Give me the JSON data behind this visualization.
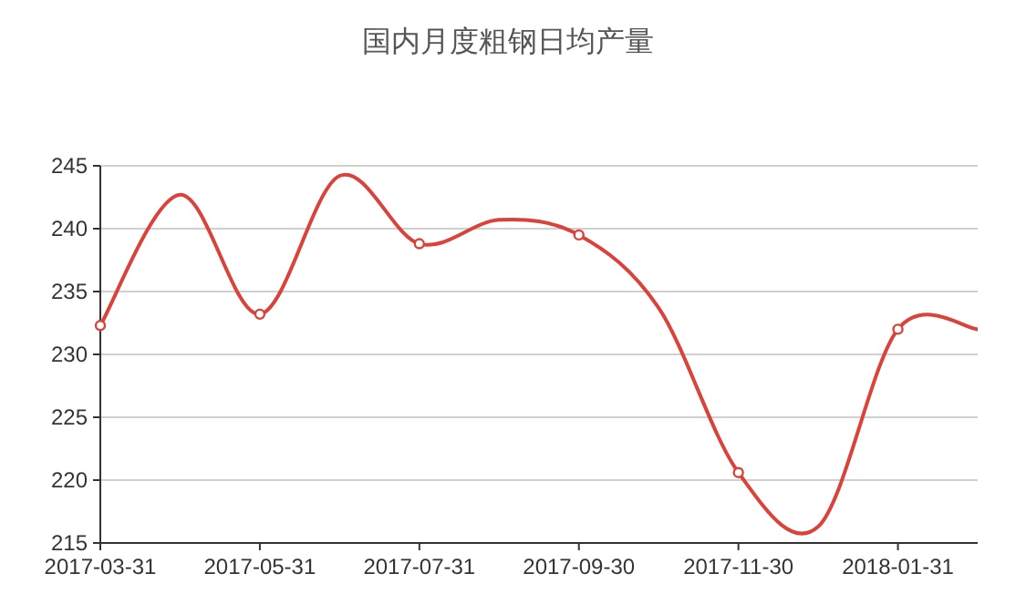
{
  "chart_data": {
    "type": "line",
    "title": "国内月度粗钢日均产量",
    "categories": [
      "2017-03-31",
      null,
      "2017-05-31",
      null,
      "2017-07-31",
      null,
      "2017-09-30",
      null,
      "2017-11-30",
      null,
      "2018-01-31",
      null
    ],
    "series": [
      {
        "color": "#d9433b",
        "values": [
          232.3,
          242.7,
          233.2,
          244.2,
          238.8,
          240.7,
          239.5,
          233.7,
          220.6,
          216.3,
          232.0,
          232.0
        ]
      }
    ],
    "ylim": [
      215,
      245
    ],
    "yticks": [
      215,
      220,
      225,
      230,
      235,
      240,
      245
    ],
    "grid": "y",
    "marker": "circle"
  }
}
